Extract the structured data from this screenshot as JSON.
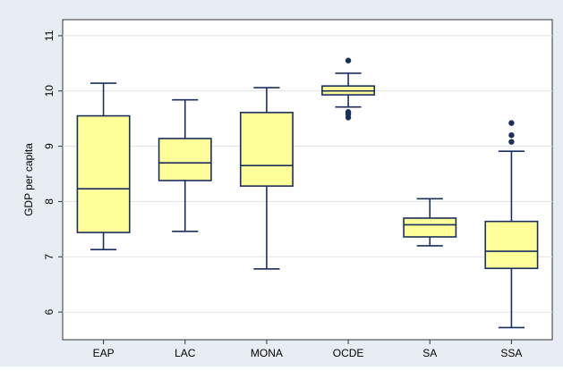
{
  "chart_data": {
    "type": "box",
    "y_label": "GDP per capita",
    "categories": [
      "EAP",
      "LAC",
      "MONA",
      "OCDE",
      "SA",
      "SSA"
    ],
    "boxes": [
      {
        "low": 7.13,
        "q1": 7.44,
        "median": 8.23,
        "q3": 9.55,
        "high": 10.14,
        "outliers": []
      },
      {
        "low": 7.46,
        "q1": 8.38,
        "median": 8.7,
        "q3": 9.14,
        "high": 9.84,
        "outliers": []
      },
      {
        "low": 6.78,
        "q1": 8.28,
        "median": 8.65,
        "q3": 9.61,
        "high": 10.06,
        "outliers": []
      },
      {
        "low": 9.71,
        "q1": 9.93,
        "median": 10.0,
        "q3": 10.09,
        "high": 10.32,
        "outliers": [
          10.55,
          9.62,
          9.58,
          9.52
        ]
      },
      {
        "low": 7.2,
        "q1": 7.36,
        "median": 7.58,
        "q3": 7.7,
        "high": 8.05,
        "outliers": []
      },
      {
        "low": 5.72,
        "q1": 6.79,
        "median": 7.1,
        "q3": 7.64,
        "high": 8.91,
        "outliers": [
          9.42,
          9.2,
          9.08
        ]
      }
    ],
    "color": "#ffff99",
    "edge_color": "#1a2f5e",
    "ylim": [
      5.5,
      11.29
    ],
    "yticks": [
      6,
      7,
      8,
      9,
      10,
      11
    ],
    "grid": true
  }
}
